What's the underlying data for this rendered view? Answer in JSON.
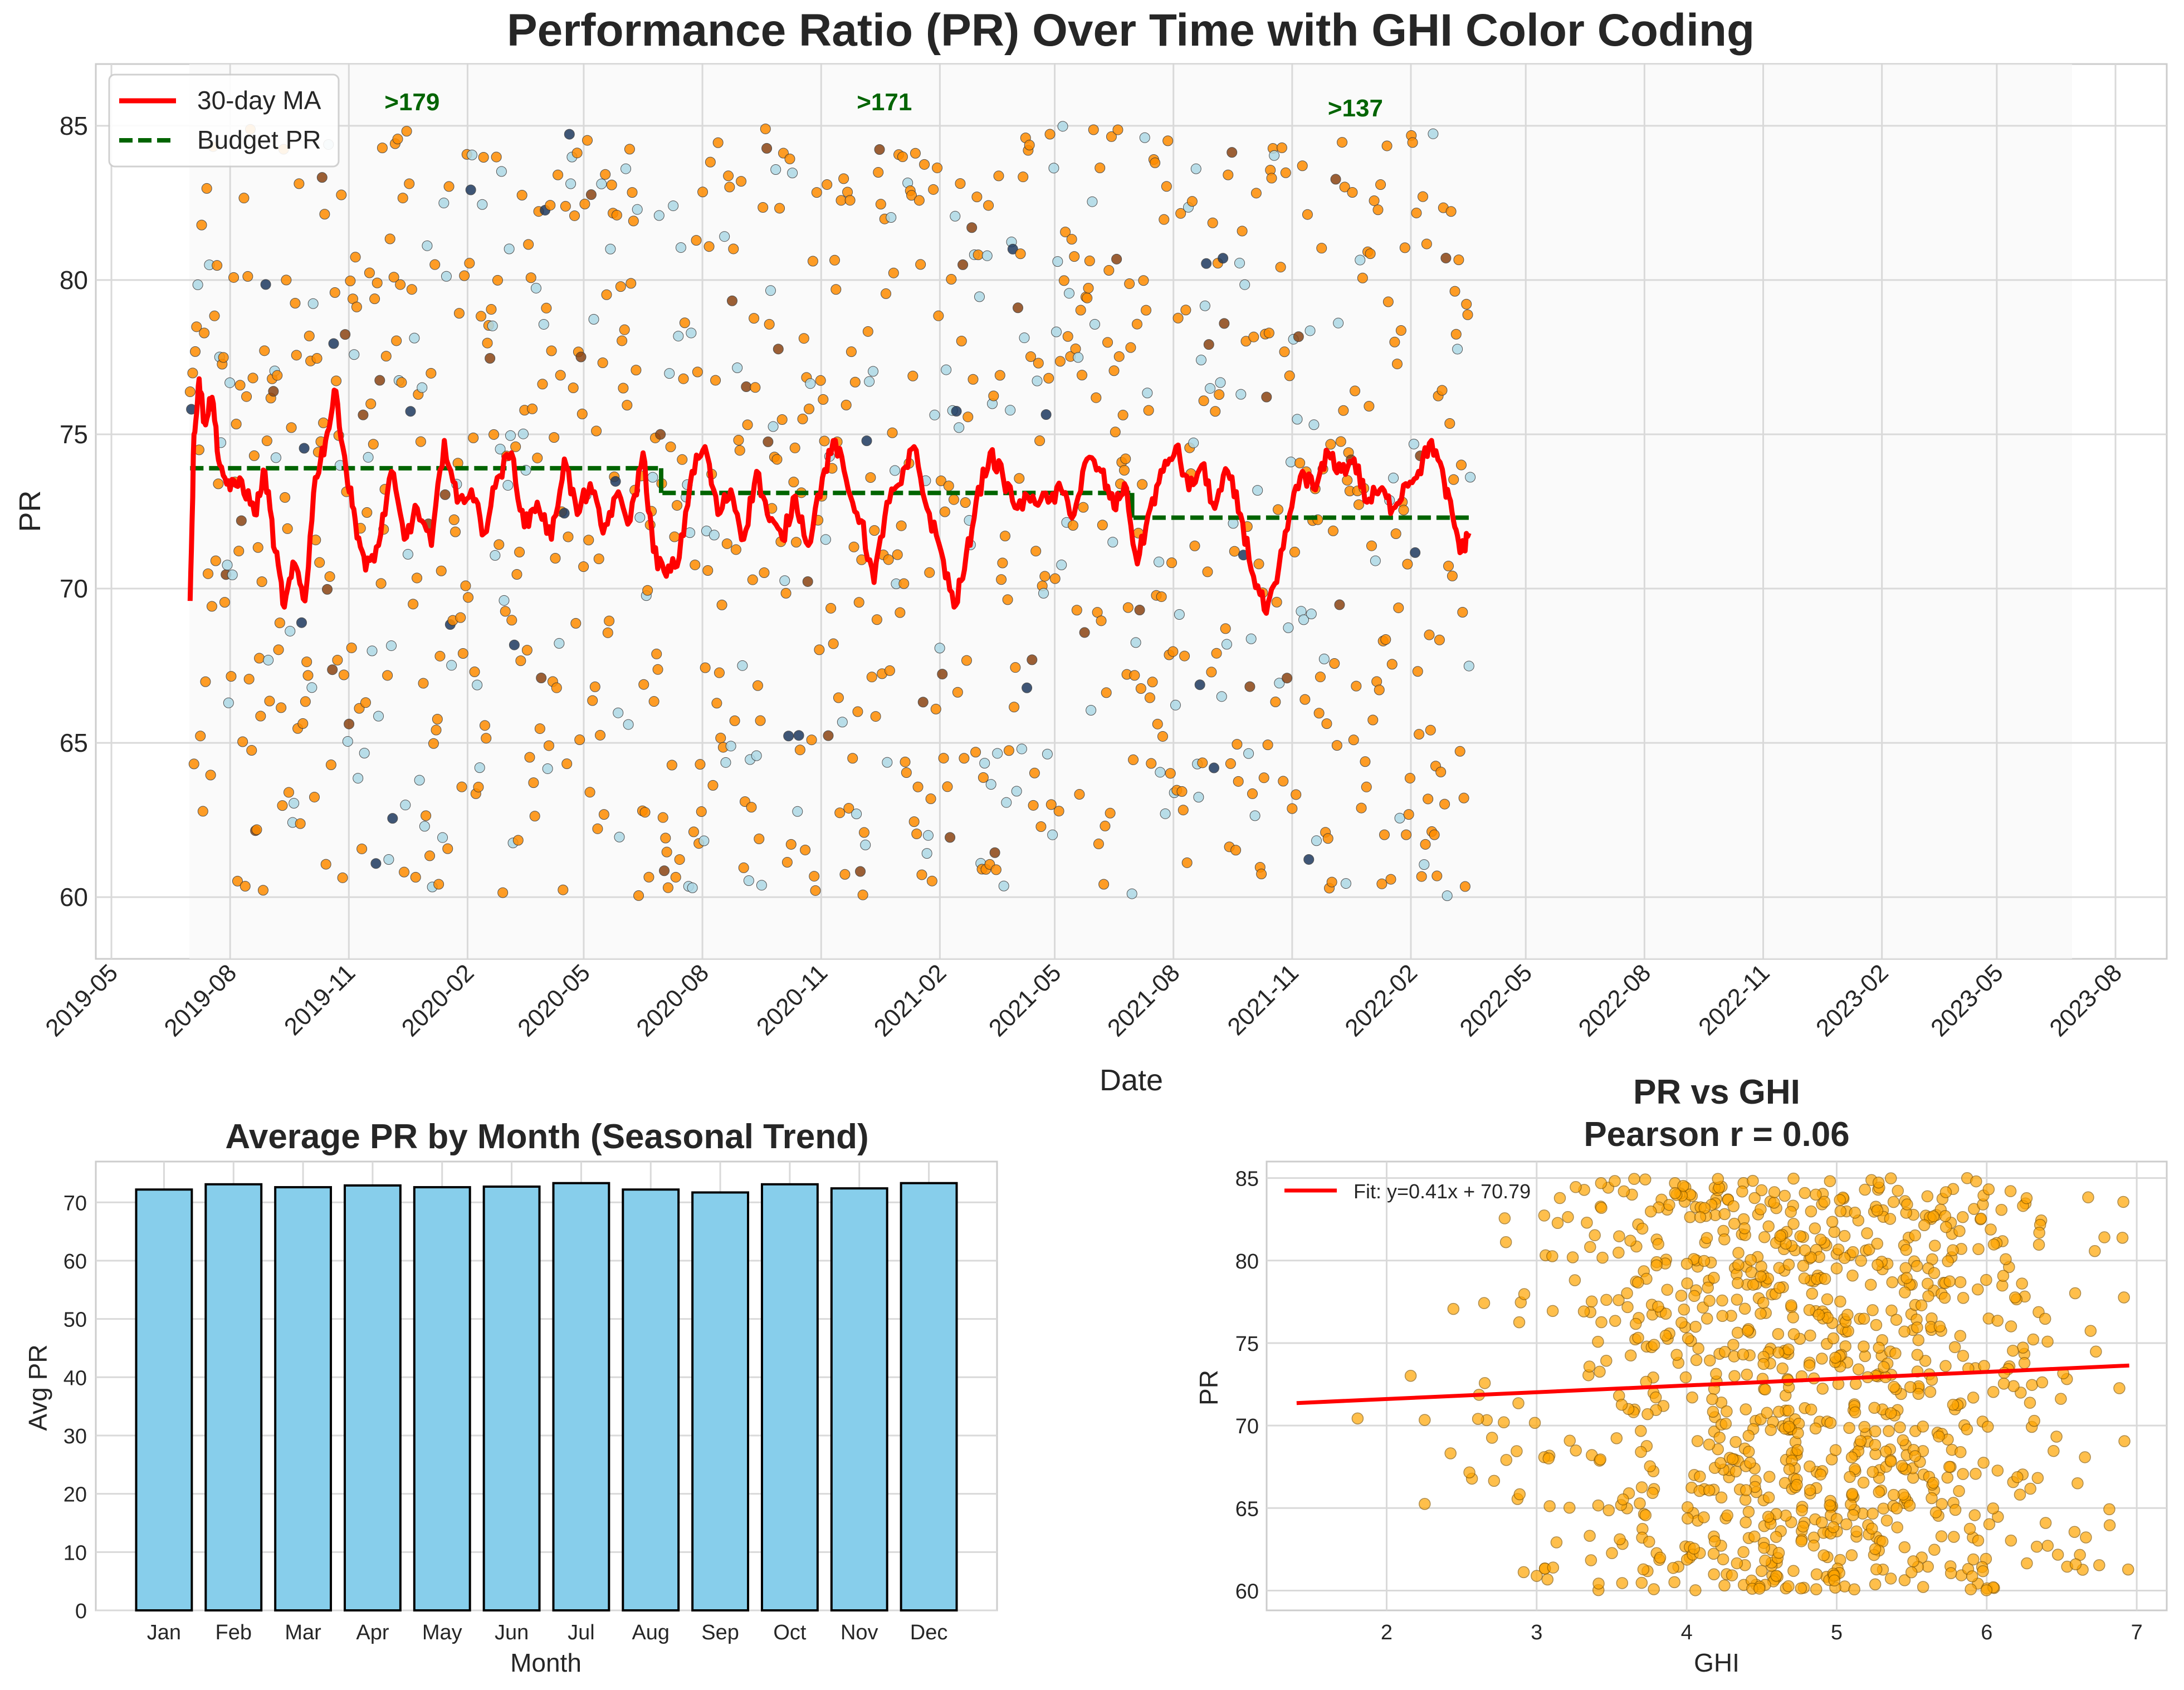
{
  "figure": {
    "title": "Performance Ratio (PR) Over Time with GHI Color Coding"
  },
  "chart_data": [
    {
      "id": "timeseries",
      "type": "scatter",
      "title": "",
      "xlabel": "Date",
      "ylabel": "PR",
      "ylim": [
        58,
        87
      ],
      "yticks": [
        60,
        65,
        70,
        75,
        80,
        85
      ],
      "xlim_months": [
        "2019-05",
        "2023-10"
      ],
      "xticks": [
        "2019-05",
        "2019-08",
        "2019-11",
        "2020-02",
        "2020-05",
        "2020-08",
        "2020-11",
        "2021-02",
        "2021-05",
        "2021-08",
        "2021-11",
        "2022-02",
        "2022-05",
        "2022-08",
        "2022-11",
        "2023-02",
        "2023-05",
        "2023-08"
      ],
      "grid": true,
      "legend_position": "top-left",
      "series": [
        {
          "name": "30-day MA",
          "kind": "line",
          "color": "#ff0000",
          "points": [
            [
              "2019-07-01",
              69.6
            ],
            [
              "2019-07-04",
              75.0
            ],
            [
              "2019-07-08",
              76.8
            ],
            [
              "2019-07-12",
              75.4
            ],
            [
              "2019-07-18",
              76.2
            ],
            [
              "2019-07-24",
              74.0
            ],
            [
              "2019-08-01",
              73.2
            ],
            [
              "2019-08-10",
              73.5
            ],
            [
              "2019-08-20",
              72.4
            ],
            [
              "2019-08-28",
              73.8
            ],
            [
              "2019-09-05",
              71.2
            ],
            [
              "2019-09-12",
              69.4
            ],
            [
              "2019-09-20",
              70.8
            ],
            [
              "2019-09-28",
              69.6
            ],
            [
              "2019-10-06",
              73.6
            ],
            [
              "2019-10-14",
              74.8
            ],
            [
              "2019-10-22",
              76.4
            ],
            [
              "2019-10-30",
              73.8
            ],
            [
              "2019-11-06",
              72.2
            ],
            [
              "2019-11-14",
              70.6
            ],
            [
              "2019-11-24",
              71.4
            ],
            [
              "2019-12-04",
              73.8
            ],
            [
              "2019-12-14",
              71.6
            ],
            [
              "2019-12-24",
              72.6
            ],
            [
              "2020-01-04",
              71.4
            ],
            [
              "2020-01-14",
              74.8
            ],
            [
              "2020-01-24",
              72.8
            ],
            [
              "2020-02-04",
              73.2
            ],
            [
              "2020-02-14",
              71.8
            ],
            [
              "2020-02-24",
              73.6
            ],
            [
              "2020-03-06",
              74.4
            ],
            [
              "2020-03-16",
              72.0
            ],
            [
              "2020-03-26",
              72.8
            ],
            [
              "2020-04-06",
              71.6
            ],
            [
              "2020-04-16",
              74.2
            ],
            [
              "2020-04-26",
              72.4
            ],
            [
              "2020-05-06",
              73.4
            ],
            [
              "2020-05-16",
              71.8
            ],
            [
              "2020-05-26",
              73.0
            ],
            [
              "2020-06-06",
              72.2
            ],
            [
              "2020-06-16",
              74.4
            ],
            [
              "2020-06-24",
              71.2
            ],
            [
              "2020-07-04",
              70.4
            ],
            [
              "2020-07-14",
              71.0
            ],
            [
              "2020-07-24",
              73.8
            ],
            [
              "2020-08-03",
              74.6
            ],
            [
              "2020-08-13",
              72.4
            ],
            [
              "2020-08-23",
              73.2
            ],
            [
              "2020-09-02",
              71.6
            ],
            [
              "2020-09-12",
              73.8
            ],
            [
              "2020-09-22",
              72.2
            ],
            [
              "2020-10-02",
              71.6
            ],
            [
              "2020-10-12",
              73.0
            ],
            [
              "2020-10-22",
              71.4
            ],
            [
              "2020-11-02",
              73.6
            ],
            [
              "2020-11-12",
              74.8
            ],
            [
              "2020-11-22",
              73.2
            ],
            [
              "2020-12-02",
              72.2
            ],
            [
              "2020-12-12",
              70.2
            ],
            [
              "2020-12-22",
              72.8
            ],
            [
              "2021-01-02",
              73.4
            ],
            [
              "2021-01-12",
              74.6
            ],
            [
              "2021-01-22",
              72.6
            ],
            [
              "2021-02-02",
              71.2
            ],
            [
              "2021-02-12",
              69.4
            ],
            [
              "2021-02-20",
              70.6
            ],
            [
              "2021-03-01",
              72.8
            ],
            [
              "2021-03-12",
              74.4
            ],
            [
              "2021-03-22",
              73.6
            ],
            [
              "2021-04-02",
              72.6
            ],
            [
              "2021-04-14",
              73.0
            ],
            [
              "2021-04-26",
              72.8
            ],
            [
              "2021-05-06",
              73.2
            ],
            [
              "2021-05-16",
              72.4
            ],
            [
              "2021-05-26",
              74.2
            ],
            [
              "2021-06-06",
              73.8
            ],
            [
              "2021-06-16",
              72.6
            ],
            [
              "2021-06-24",
              73.4
            ],
            [
              "2021-07-04",
              70.8
            ],
            [
              "2021-07-14",
              72.6
            ],
            [
              "2021-07-24",
              73.8
            ],
            [
              "2021-08-03",
              74.6
            ],
            [
              "2021-08-13",
              73.2
            ],
            [
              "2021-08-23",
              74.0
            ],
            [
              "2021-09-02",
              72.6
            ],
            [
              "2021-09-12",
              73.8
            ],
            [
              "2021-09-22",
              72.4
            ],
            [
              "2021-10-02",
              70.4
            ],
            [
              "2021-10-12",
              69.2
            ],
            [
              "2021-10-20",
              70.2
            ],
            [
              "2021-10-30",
              72.4
            ],
            [
              "2021-11-09",
              73.8
            ],
            [
              "2021-11-19",
              73.2
            ],
            [
              "2021-11-29",
              74.4
            ],
            [
              "2021-12-09",
              73.8
            ],
            [
              "2021-12-19",
              74.2
            ],
            [
              "2021-12-29",
              72.8
            ],
            [
              "2022-01-08",
              73.2
            ],
            [
              "2022-01-18",
              72.6
            ],
            [
              "2022-01-28",
              73.4
            ],
            [
              "2022-02-07",
              73.8
            ],
            [
              "2022-02-17",
              74.8
            ],
            [
              "2022-02-27",
              73.4
            ],
            [
              "2022-03-06",
              72.2
            ],
            [
              "2022-03-12",
              71.2
            ],
            [
              "2022-03-18",
              71.8
            ]
          ]
        },
        {
          "name": "Budget PR",
          "kind": "step",
          "color": "#006400",
          "segments": [
            [
              "2019-07-01",
              "2020-06-30",
              73.9
            ],
            [
              "2020-07-01",
              "2021-06-30",
              73.1
            ],
            [
              "2021-07-01",
              "2022-03-19",
              72.3
            ]
          ]
        },
        {
          "name": "",
          "kind": "scatter",
          "color_levels": {
            "low": "#add8e6",
            "mid": "#ff8c00",
            "high": "#8b4513",
            "dark": "#1f3a5f"
          }
        }
      ],
      "annotations": [
        {
          "date": "2019-12-20",
          "y": 85.5,
          "text": ">179"
        },
        {
          "date": "2020-12-20",
          "y": 85.5,
          "text": ">171"
        },
        {
          "date": "2021-12-20",
          "y": 85.3,
          "text": ">137"
        }
      ]
    },
    {
      "id": "monthly",
      "type": "bar",
      "title": "Average PR by Month (Seasonal Trend)",
      "xlabel": "Month",
      "ylabel": "Avg PR",
      "categories": [
        "Jan",
        "Feb",
        "Mar",
        "Apr",
        "May",
        "Jun",
        "Jul",
        "Aug",
        "Sep",
        "Oct",
        "Nov",
        "Dec"
      ],
      "values": [
        72.2,
        73.1,
        72.6,
        72.9,
        72.6,
        72.7,
        73.3,
        72.2,
        71.7,
        73.1,
        72.4,
        73.3
      ],
      "ylim": [
        0,
        77
      ],
      "yticks": [
        0,
        10,
        20,
        30,
        40,
        50,
        60,
        70
      ],
      "bar_color": "#87ceeb",
      "grid": true
    },
    {
      "id": "pr-vs-ghi",
      "type": "scatter",
      "title": "PR vs GHI",
      "subtitle": "Pearson r = 0.06",
      "xlabel": "GHI",
      "ylabel": "PR",
      "xlim": [
        1.2,
        7.2
      ],
      "ylim": [
        58.8,
        86.0
      ],
      "xticks": [
        2,
        3,
        4,
        5,
        6,
        7
      ],
      "yticks": [
        60,
        65,
        70,
        75,
        80,
        85
      ],
      "point_color": "#ffa500",
      "fit": {
        "label": "Fit: y=0.41x + 70.79",
        "slope": 0.41,
        "intercept": 70.79,
        "x_range": [
          1.4,
          6.95
        ],
        "color": "#ff0000"
      },
      "legend_position": "top-left",
      "grid": true
    }
  ]
}
